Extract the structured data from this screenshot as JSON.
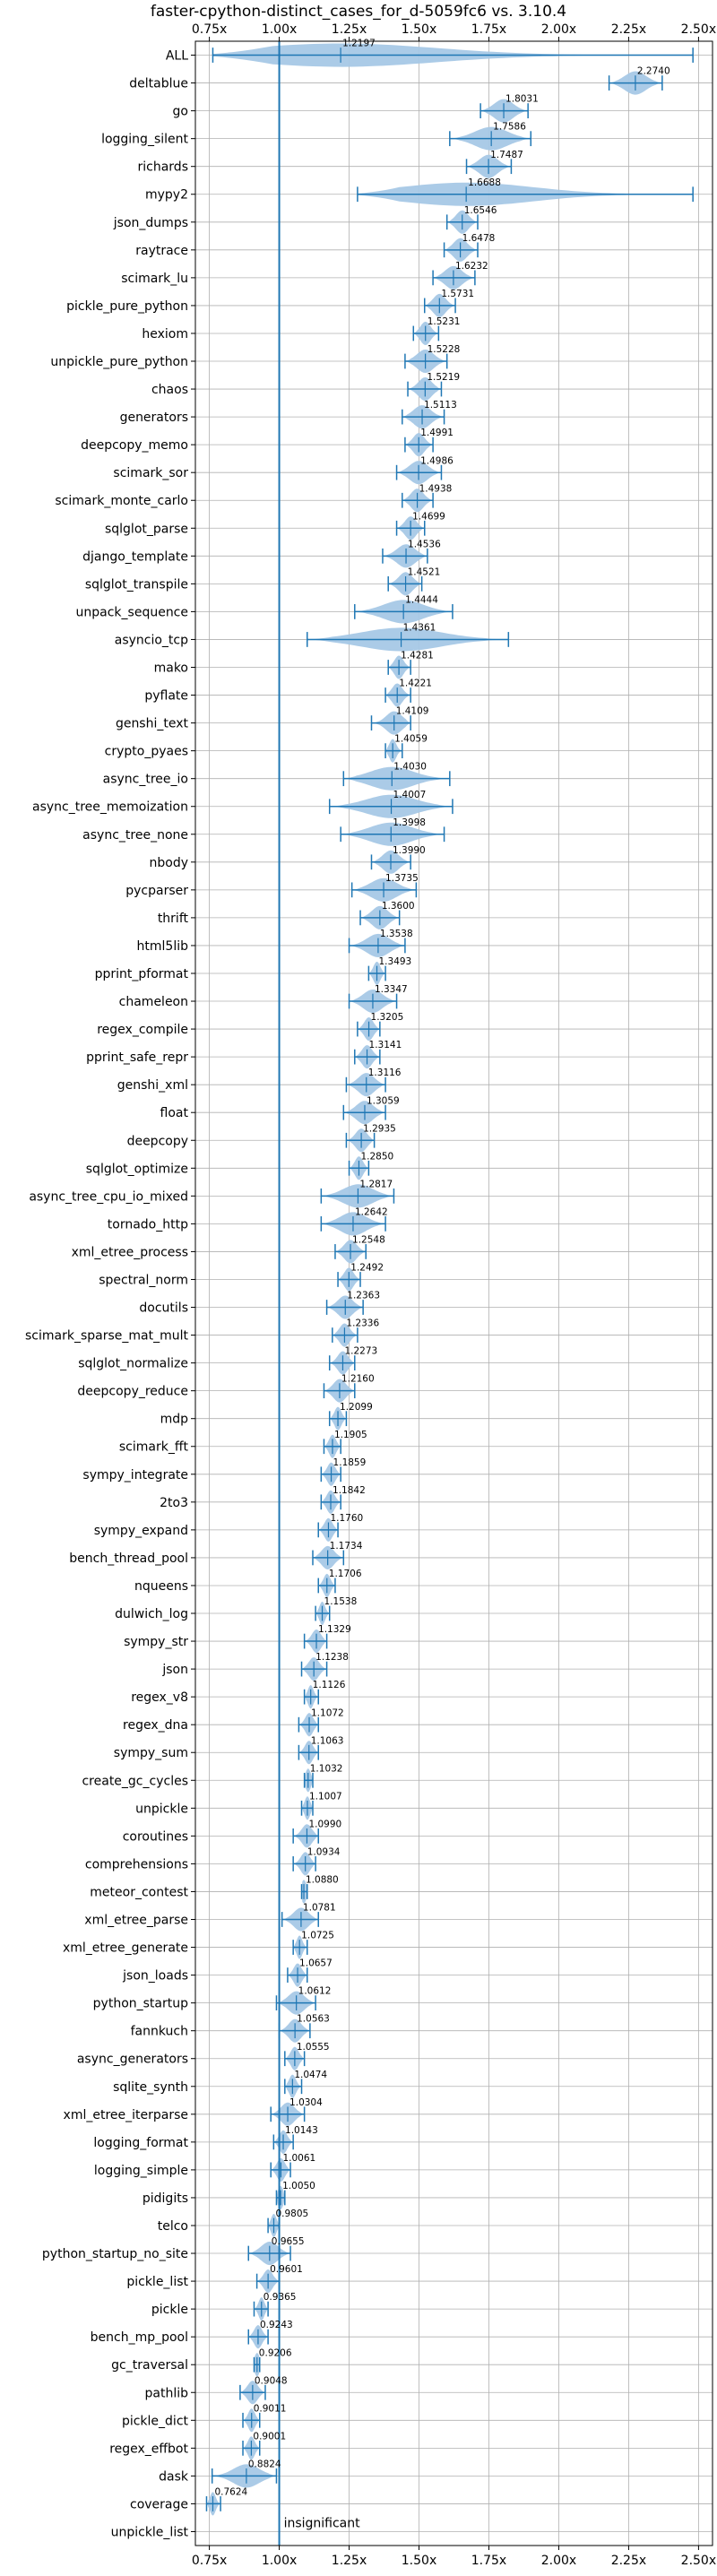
{
  "chart_data": {
    "type": "violin",
    "title": "faster-cpython-distinct_cases_for_d-5059fc6 vs. 3.10.4",
    "xlabel": "",
    "ylabel": "",
    "xlim": [
      0.7,
      2.55
    ],
    "x_ticks": [
      0.75,
      1.0,
      1.25,
      1.5,
      1.75,
      2.0,
      2.25,
      2.5
    ],
    "x_tick_labels": [
      "0.75x",
      "1.00x",
      "1.25x",
      "1.50x",
      "1.75x",
      "2.00x",
      "2.25x",
      "2.50x"
    ],
    "reference_line": 1.0,
    "grid": true,
    "colors": {
      "violin": "#a6c8e6",
      "line": "#1f77b4",
      "grid": "#b0b0b0"
    },
    "annotation": "insignificant",
    "benchmarks": [
      {
        "name": "ALL",
        "median": 1.2197,
        "min": 0.7624,
        "max": 2.48
      },
      {
        "name": "deltablue",
        "median": 2.274,
        "min": 2.18,
        "max": 2.37
      },
      {
        "name": "go",
        "median": 1.8031,
        "min": 1.72,
        "max": 1.89
      },
      {
        "name": "logging_silent",
        "median": 1.7586,
        "min": 1.61,
        "max": 1.9
      },
      {
        "name": "richards",
        "median": 1.7487,
        "min": 1.67,
        "max": 1.83
      },
      {
        "name": "mypy2",
        "median": 1.6688,
        "min": 1.28,
        "max": 2.48
      },
      {
        "name": "json_dumps",
        "median": 1.6546,
        "min": 1.6,
        "max": 1.71
      },
      {
        "name": "raytrace",
        "median": 1.6478,
        "min": 1.59,
        "max": 1.71
      },
      {
        "name": "scimark_lu",
        "median": 1.6232,
        "min": 1.55,
        "max": 1.7
      },
      {
        "name": "pickle_pure_python",
        "median": 1.5731,
        "min": 1.52,
        "max": 1.63
      },
      {
        "name": "hexiom",
        "median": 1.5231,
        "min": 1.48,
        "max": 1.57
      },
      {
        "name": "unpickle_pure_python",
        "median": 1.5228,
        "min": 1.45,
        "max": 1.6
      },
      {
        "name": "chaos",
        "median": 1.5219,
        "min": 1.46,
        "max": 1.58
      },
      {
        "name": "generators",
        "median": 1.5113,
        "min": 1.44,
        "max": 1.59
      },
      {
        "name": "deepcopy_memo",
        "median": 1.4991,
        "min": 1.45,
        "max": 1.55
      },
      {
        "name": "scimark_sor",
        "median": 1.4986,
        "min": 1.42,
        "max": 1.58
      },
      {
        "name": "scimark_monte_carlo",
        "median": 1.4938,
        "min": 1.44,
        "max": 1.55
      },
      {
        "name": "sqlglot_parse",
        "median": 1.4699,
        "min": 1.42,
        "max": 1.52
      },
      {
        "name": "django_template",
        "median": 1.4536,
        "min": 1.37,
        "max": 1.53
      },
      {
        "name": "sqlglot_transpile",
        "median": 1.4521,
        "min": 1.39,
        "max": 1.51
      },
      {
        "name": "unpack_sequence",
        "median": 1.4444,
        "min": 1.27,
        "max": 1.62
      },
      {
        "name": "asyncio_tcp",
        "median": 1.4361,
        "min": 1.1,
        "max": 1.82
      },
      {
        "name": "mako",
        "median": 1.4281,
        "min": 1.39,
        "max": 1.47
      },
      {
        "name": "pyflate",
        "median": 1.4221,
        "min": 1.38,
        "max": 1.47
      },
      {
        "name": "genshi_text",
        "median": 1.4109,
        "min": 1.33,
        "max": 1.47
      },
      {
        "name": "crypto_pyaes",
        "median": 1.4059,
        "min": 1.38,
        "max": 1.44
      },
      {
        "name": "async_tree_io",
        "median": 1.403,
        "min": 1.23,
        "max": 1.61
      },
      {
        "name": "async_tree_memoization",
        "median": 1.4007,
        "min": 1.18,
        "max": 1.62
      },
      {
        "name": "async_tree_none",
        "median": 1.3998,
        "min": 1.22,
        "max": 1.59
      },
      {
        "name": "nbody",
        "median": 1.399,
        "min": 1.33,
        "max": 1.47
      },
      {
        "name": "pycparser",
        "median": 1.3735,
        "min": 1.26,
        "max": 1.49
      },
      {
        "name": "thrift",
        "median": 1.36,
        "min": 1.29,
        "max": 1.43
      },
      {
        "name": "html5lib",
        "median": 1.3538,
        "min": 1.25,
        "max": 1.45
      },
      {
        "name": "pprint_pformat",
        "median": 1.3493,
        "min": 1.32,
        "max": 1.38
      },
      {
        "name": "chameleon",
        "median": 1.3347,
        "min": 1.25,
        "max": 1.42
      },
      {
        "name": "regex_compile",
        "median": 1.3205,
        "min": 1.28,
        "max": 1.36
      },
      {
        "name": "pprint_safe_repr",
        "median": 1.3141,
        "min": 1.27,
        "max": 1.36
      },
      {
        "name": "genshi_xml",
        "median": 1.3116,
        "min": 1.24,
        "max": 1.38
      },
      {
        "name": "float",
        "median": 1.3059,
        "min": 1.23,
        "max": 1.38
      },
      {
        "name": "deepcopy",
        "median": 1.2935,
        "min": 1.24,
        "max": 1.34
      },
      {
        "name": "sqlglot_optimize",
        "median": 1.285,
        "min": 1.25,
        "max": 1.32
      },
      {
        "name": "async_tree_cpu_io_mixed",
        "median": 1.2817,
        "min": 1.15,
        "max": 1.41
      },
      {
        "name": "tornado_http",
        "median": 1.2642,
        "min": 1.15,
        "max": 1.38
      },
      {
        "name": "xml_etree_process",
        "median": 1.2548,
        "min": 1.2,
        "max": 1.31
      },
      {
        "name": "spectral_norm",
        "median": 1.2492,
        "min": 1.21,
        "max": 1.29
      },
      {
        "name": "docutils",
        "median": 1.2363,
        "min": 1.17,
        "max": 1.3
      },
      {
        "name": "scimark_sparse_mat_mult",
        "median": 1.2336,
        "min": 1.19,
        "max": 1.28
      },
      {
        "name": "sqlglot_normalize",
        "median": 1.2273,
        "min": 1.18,
        "max": 1.27
      },
      {
        "name": "deepcopy_reduce",
        "median": 1.216,
        "min": 1.16,
        "max": 1.27
      },
      {
        "name": "mdp",
        "median": 1.2099,
        "min": 1.18,
        "max": 1.24
      },
      {
        "name": "scimark_fft",
        "median": 1.1905,
        "min": 1.16,
        "max": 1.22
      },
      {
        "name": "sympy_integrate",
        "median": 1.1859,
        "min": 1.15,
        "max": 1.22
      },
      {
        "name": "2to3",
        "median": 1.1842,
        "min": 1.15,
        "max": 1.22
      },
      {
        "name": "sympy_expand",
        "median": 1.176,
        "min": 1.14,
        "max": 1.21
      },
      {
        "name": "bench_thread_pool",
        "median": 1.1734,
        "min": 1.12,
        "max": 1.23
      },
      {
        "name": "nqueens",
        "median": 1.1706,
        "min": 1.14,
        "max": 1.2
      },
      {
        "name": "dulwich_log",
        "median": 1.1538,
        "min": 1.13,
        "max": 1.18
      },
      {
        "name": "sympy_str",
        "median": 1.1329,
        "min": 1.09,
        "max": 1.17
      },
      {
        "name": "json",
        "median": 1.1238,
        "min": 1.08,
        "max": 1.17
      },
      {
        "name": "regex_v8",
        "median": 1.1126,
        "min": 1.09,
        "max": 1.14
      },
      {
        "name": "regex_dna",
        "median": 1.1072,
        "min": 1.07,
        "max": 1.14
      },
      {
        "name": "sympy_sum",
        "median": 1.1063,
        "min": 1.07,
        "max": 1.14
      },
      {
        "name": "create_gc_cycles",
        "median": 1.1032,
        "min": 1.09,
        "max": 1.12
      },
      {
        "name": "unpickle",
        "median": 1.1007,
        "min": 1.08,
        "max": 1.12
      },
      {
        "name": "coroutines",
        "median": 1.099,
        "min": 1.05,
        "max": 1.14
      },
      {
        "name": "comprehensions",
        "median": 1.0934,
        "min": 1.05,
        "max": 1.13
      },
      {
        "name": "meteor_contest",
        "median": 1.088,
        "min": 1.08,
        "max": 1.1
      },
      {
        "name": "xml_etree_parse",
        "median": 1.0781,
        "min": 1.01,
        "max": 1.14
      },
      {
        "name": "xml_etree_generate",
        "median": 1.0725,
        "min": 1.05,
        "max": 1.1
      },
      {
        "name": "json_loads",
        "median": 1.0657,
        "min": 1.03,
        "max": 1.1
      },
      {
        "name": "python_startup",
        "median": 1.0612,
        "min": 0.99,
        "max": 1.13
      },
      {
        "name": "fannkuch",
        "median": 1.0563,
        "min": 1.0,
        "max": 1.11
      },
      {
        "name": "async_generators",
        "median": 1.0555,
        "min": 1.02,
        "max": 1.09
      },
      {
        "name": "sqlite_synth",
        "median": 1.0474,
        "min": 1.02,
        "max": 1.08
      },
      {
        "name": "xml_etree_iterparse",
        "median": 1.0304,
        "min": 0.97,
        "max": 1.09
      },
      {
        "name": "logging_format",
        "median": 1.0143,
        "min": 0.98,
        "max": 1.05
      },
      {
        "name": "logging_simple",
        "median": 1.0061,
        "min": 0.97,
        "max": 1.04
      },
      {
        "name": "pidigits",
        "median": 1.005,
        "min": 0.99,
        "max": 1.02
      },
      {
        "name": "telco",
        "median": 0.9805,
        "min": 0.96,
        "max": 1.0
      },
      {
        "name": "python_startup_no_site",
        "median": 0.9655,
        "min": 0.89,
        "max": 1.04
      },
      {
        "name": "pickle_list",
        "median": 0.9601,
        "min": 0.92,
        "max": 1.0
      },
      {
        "name": "pickle",
        "median": 0.9365,
        "min": 0.91,
        "max": 0.96
      },
      {
        "name": "bench_mp_pool",
        "median": 0.9243,
        "min": 0.89,
        "max": 0.96
      },
      {
        "name": "gc_traversal",
        "median": 0.9206,
        "min": 0.91,
        "max": 0.93
      },
      {
        "name": "pathlib",
        "median": 0.9048,
        "min": 0.86,
        "max": 0.95
      },
      {
        "name": "pickle_dict",
        "median": 0.9011,
        "min": 0.87,
        "max": 0.93
      },
      {
        "name": "regex_effbot",
        "median": 0.9001,
        "min": 0.87,
        "max": 0.93
      },
      {
        "name": "dask",
        "median": 0.8824,
        "min": 0.76,
        "max": 0.99
      },
      {
        "name": "coverage",
        "median": 0.7624,
        "min": 0.74,
        "max": 0.79
      },
      {
        "name": "unpickle_list",
        "median": null,
        "min": null,
        "max": null
      }
    ]
  }
}
